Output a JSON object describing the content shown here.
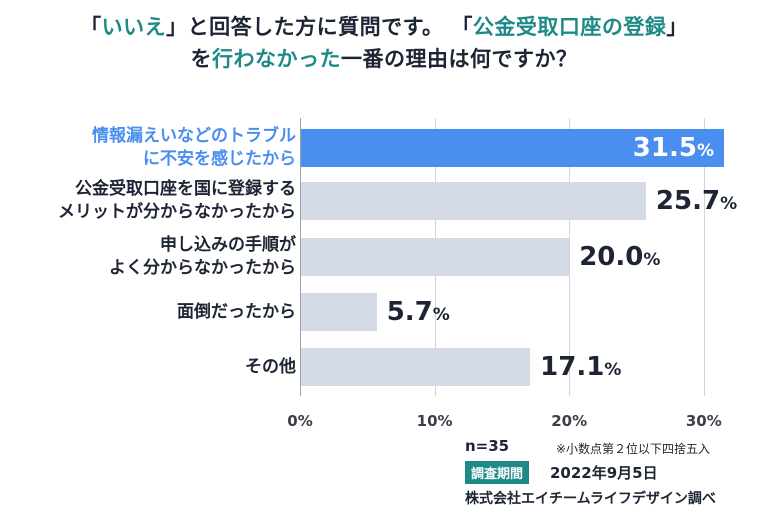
{
  "title": {
    "line1": [
      {
        "text": "「",
        "hl": false
      },
      {
        "text": "いいえ",
        "hl": true
      },
      {
        "text": "」と回答した方に質問です。 「",
        "hl": false
      },
      {
        "text": "公金受取口座の登録",
        "hl": true
      },
      {
        "text": "」",
        "hl": false
      }
    ],
    "line2": [
      {
        "text": "を",
        "hl": false
      },
      {
        "text": "行わなかった",
        "hl": true
      },
      {
        "text": "一番の理由は何ですか？",
        "hl": false
      }
    ]
  },
  "chart_data": {
    "type": "bar",
    "orientation": "horizontal",
    "categories": [
      [
        "情報漏えいなどのトラブル",
        "に不安を感じたから"
      ],
      [
        "公金受取口座を国に登録する",
        "メリットが分からなかったから"
      ],
      [
        "申し込みの手順が",
        "よく分からなかったから"
      ],
      [
        "面倒だったから"
      ],
      [
        "その他"
      ]
    ],
    "values": [
      31.5,
      25.7,
      20.0,
      5.7,
      17.1
    ],
    "value_labels": [
      "31.5",
      "25.7",
      "20.0",
      "5.7",
      "17.1"
    ],
    "unit": "%",
    "highlight_index": 0,
    "xlim": [
      0,
      31.5
    ],
    "xticks": [
      "0%",
      "10%",
      "20%",
      "30%"
    ],
    "xtick_values": [
      0,
      10,
      20,
      30
    ],
    "grid": true,
    "colors": {
      "bar": "#d4dae6",
      "highlight": "#4a8ef0",
      "accent": "#1e8a87"
    }
  },
  "footer": {
    "n": "n=35",
    "note": "※小数点第２位以下四捨五入",
    "period_label": "調査期間",
    "period": "2022年9月5日",
    "company": "株式会社エイチームライフデザイン調べ"
  }
}
